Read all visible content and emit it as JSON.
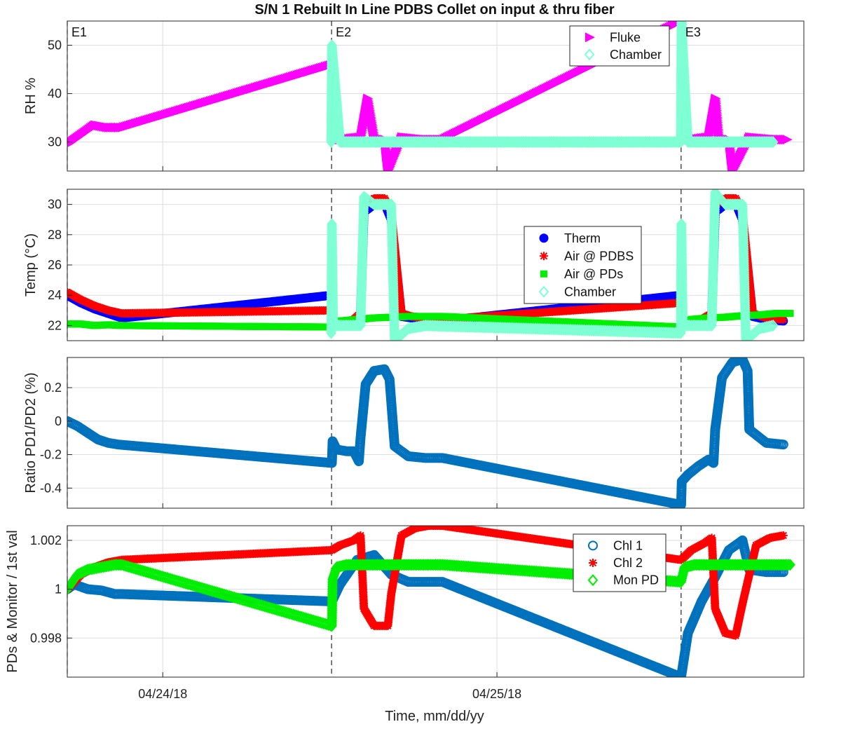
{
  "title": "S/N 1 Rebuilt In Line PDBS Collet on input & thru fiber",
  "xlabel": "Time, mm/dd/yy",
  "x_ticks": [
    "04/24/18",
    "04/25/18"
  ],
  "events": [
    {
      "label": "E1",
      "t": 0.0
    },
    {
      "label": "E2",
      "t": 0.775
    },
    {
      "label": "E3",
      "t": 1.8
    }
  ],
  "chart_data": [
    {
      "type": "scatter",
      "ylabel": "RH %",
      "ylim": [
        24,
        55
      ],
      "yticks": [
        30,
        40,
        50
      ],
      "legend_position": "top-right",
      "series": [
        {
          "name": "Fluke",
          "color": "#ff00ff",
          "marker": "triangle-right",
          "x": [
            0.0,
            0.04,
            0.08,
            0.12,
            0.16,
            0.776,
            0.778,
            0.8,
            0.86,
            0.88,
            0.9,
            0.93,
            0.94,
            0.98,
            1.05,
            1.1,
            1.801,
            1.805,
            1.83,
            1.88,
            1.9,
            1.91,
            1.94,
            1.95,
            2.0,
            2.08,
            2.11
          ],
          "y": [
            29.5,
            31.5,
            33.5,
            33.0,
            33.0,
            46,
            30.5,
            30.5,
            31,
            39,
            30.5,
            30.5,
            24,
            31,
            30.5,
            30.5,
            55,
            30.5,
            30.5,
            31,
            39,
            30.5,
            30.5,
            24,
            31,
            30.5,
            30.5
          ]
        },
        {
          "name": "Chamber",
          "color": "#7fffd4",
          "marker": "diamond",
          "x": [
            0.774,
            0.776,
            0.8,
            0.85,
            0.9,
            0.95,
            1.0,
            1.05,
            1.799,
            1.801,
            1.82,
            1.87,
            1.92,
            1.97,
            2.02,
            2.07
          ],
          "y": [
            30,
            50,
            30,
            30,
            30,
            30,
            30,
            30,
            30,
            55,
            30,
            30,
            30,
            30,
            30,
            30
          ]
        }
      ]
    },
    {
      "type": "scatter",
      "ylabel": "Temp (°C)",
      "ylim": [
        21,
        31
      ],
      "yticks": [
        22,
        24,
        26,
        28,
        30
      ],
      "legend_position": "center-right",
      "series": [
        {
          "name": "Therm",
          "color": "#0000ff",
          "marker": "circle",
          "x": [
            0.0,
            0.04,
            0.08,
            0.12,
            0.16,
            0.776,
            0.78,
            0.81,
            0.84,
            0.86,
            0.87,
            0.9,
            0.93,
            0.95,
            0.98,
            1.01,
            1.05,
            1.1,
            1.801,
            1.805,
            1.83,
            1.86,
            1.89,
            1.9,
            1.93,
            1.96,
            1.98,
            2.01,
            2.05,
            2.1
          ],
          "y": [
            24.0,
            23.5,
            23.1,
            22.8,
            22.5,
            24.0,
            22.1,
            22.0,
            22.1,
            22.6,
            29.5,
            30.0,
            30.1,
            29.0,
            22.6,
            22.5,
            22.4,
            22.3,
            24.0,
            22.1,
            22.0,
            22.1,
            22.6,
            29.5,
            30.0,
            30.1,
            29.0,
            22.6,
            22.4,
            22.3
          ]
        },
        {
          "name": "Air @ PDBS",
          "color": "#ff0000",
          "marker": "asterisk",
          "x": [
            0.0,
            0.04,
            0.08,
            0.12,
            0.16,
            0.776,
            0.78,
            0.81,
            0.84,
            0.86,
            0.87,
            0.9,
            0.93,
            0.95,
            0.98,
            1.01,
            1.05,
            1.1,
            1.801,
            1.805,
            1.83,
            1.86,
            1.89,
            1.9,
            1.93,
            1.96,
            1.98,
            2.01,
            2.05,
            2.1
          ],
          "y": [
            24.2,
            23.7,
            23.3,
            23.0,
            22.8,
            23.0,
            22.3,
            22.2,
            22.4,
            22.8,
            30.0,
            30.4,
            30.4,
            29.5,
            22.8,
            22.6,
            22.5,
            22.4,
            23.5,
            22.3,
            22.2,
            22.4,
            22.8,
            30.0,
            30.4,
            30.4,
            29.5,
            22.8,
            22.5,
            22.4
          ]
        },
        {
          "name": "Air @ PDs",
          "color": "#00ee00",
          "marker": "square",
          "x": [
            0.0,
            0.04,
            0.08,
            0.12,
            0.16,
            0.776,
            0.8,
            0.85,
            0.9,
            0.95,
            1.0,
            1.05,
            1.1,
            1.801,
            1.83,
            1.88,
            1.93,
            1.98,
            2.03,
            2.08,
            2.12
          ],
          "y": [
            22.1,
            22.1,
            22.0,
            22.05,
            22.0,
            21.9,
            22.3,
            22.4,
            22.5,
            22.55,
            22.6,
            22.6,
            22.6,
            21.9,
            22.4,
            22.5,
            22.55,
            22.65,
            22.7,
            22.8,
            22.8
          ]
        },
        {
          "name": "Chamber",
          "color": "#7fffd4",
          "marker": "diamond",
          "x": [
            0.774,
            0.776,
            0.78,
            0.8,
            0.83,
            0.86,
            0.87,
            0.9,
            0.93,
            0.95,
            0.96,
            1.0,
            1.05,
            1.799,
            1.801,
            1.805,
            1.83,
            1.86,
            1.89,
            1.9,
            1.93,
            1.96,
            1.98,
            1.99,
            2.03,
            2.07
          ],
          "y": [
            21.5,
            28.7,
            22.0,
            22.0,
            22.0,
            22.0,
            30.5,
            30.0,
            30.0,
            30.0,
            21.0,
            21.8,
            22.0,
            21.5,
            28.7,
            22.0,
            22.0,
            22.0,
            22.0,
            30.8,
            30.0,
            30.0,
            30.0,
            21.0,
            21.8,
            22.0
          ]
        }
      ]
    },
    {
      "type": "scatter",
      "ylabel": "Ratio PD1/PD2 (%)",
      "ylim": [
        -0.52,
        0.38
      ],
      "yticks": [
        -0.4,
        -0.2,
        0,
        0.2
      ],
      "series": [
        {
          "name": "",
          "color": "#0072bd",
          "marker": "circle",
          "x": [
            0.0,
            0.03,
            0.06,
            0.09,
            0.12,
            0.15,
            0.776,
            0.778,
            0.79,
            0.82,
            0.84,
            0.855,
            0.86,
            0.875,
            0.9,
            0.93,
            0.945,
            0.96,
            1.0,
            1.05,
            1.1,
            1.8,
            1.802,
            1.82,
            1.85,
            1.88,
            1.895,
            1.9,
            1.92,
            1.95,
            1.98,
            1.995,
            2.0,
            2.05,
            2.1
          ],
          "y": [
            0.0,
            -0.03,
            -0.07,
            -0.11,
            -0.13,
            -0.14,
            -0.25,
            -0.12,
            -0.17,
            -0.18,
            -0.18,
            -0.24,
            -0.1,
            0.22,
            0.3,
            0.31,
            0.25,
            -0.15,
            -0.21,
            -0.22,
            -0.22,
            -0.5,
            -0.36,
            -0.32,
            -0.27,
            -0.23,
            -0.25,
            -0.05,
            0.26,
            0.35,
            0.37,
            0.3,
            -0.05,
            -0.13,
            -0.14
          ]
        }
      ]
    },
    {
      "type": "scatter",
      "ylabel": "PDs & Monitor / 1st val",
      "ylim": [
        0.9964,
        1.0026
      ],
      "yticks": [
        0.998,
        1,
        1.002
      ],
      "legend_position": "top-right",
      "series": [
        {
          "name": "Chl 1",
          "color": "#0072bd",
          "marker": "circle",
          "x": [
            0.0,
            0.02,
            0.06,
            0.1,
            0.14,
            0.16,
            0.776,
            0.8,
            0.85,
            0.9,
            0.95,
            1.0,
            1.05,
            1.1,
            1.8,
            1.82,
            1.86,
            1.9,
            1.94,
            1.98,
            2.0,
            2.05,
            2.1
          ],
          "y": [
            1.0,
            1.0002,
            1.0,
            0.99995,
            0.9998,
            0.9998,
            0.9995,
            1.0002,
            1.0012,
            1.0014,
            1.0006,
            1.0003,
            1.0003,
            1.0003,
            0.9964,
            0.9982,
            0.9995,
            1.0005,
            1.0016,
            1.002,
            1.0008,
            1.0007,
            1.0007
          ]
        },
        {
          "name": "Chl 2",
          "color": "#ff0000",
          "marker": "asterisk",
          "x": [
            0.0,
            0.04,
            0.08,
            0.12,
            0.16,
            0.776,
            0.8,
            0.84,
            0.86,
            0.87,
            0.9,
            0.94,
            0.95,
            0.98,
            1.02,
            1.06,
            1.1,
            1.8,
            1.83,
            1.87,
            1.89,
            1.9,
            1.93,
            1.96,
            1.98,
            2.02,
            2.06,
            2.1
          ],
          "y": [
            1.0,
            1.0006,
            1.0009,
            1.0011,
            1.0012,
            1.0016,
            1.0018,
            1.002,
            1.0022,
            0.9992,
            0.9985,
            0.9985,
            0.9998,
            1.0022,
            1.0025,
            1.0026,
            1.0026,
            1.0012,
            1.0016,
            1.0019,
            1.0021,
            0.9992,
            0.9982,
            0.9981,
            0.9994,
            1.0018,
            1.0021,
            1.0022
          ]
        },
        {
          "name": "Mon PD",
          "color": "#00ee00",
          "marker": "diamond",
          "x": [
            0.0,
            0.03,
            0.06,
            0.1,
            0.14,
            0.16,
            0.776,
            0.778,
            0.79,
            0.82,
            0.86,
            0.9,
            0.95,
            1.0,
            1.05,
            1.1,
            1.8,
            1.81,
            1.84,
            1.88,
            1.93,
            1.98,
            2.03,
            2.08,
            2.12
          ],
          "y": [
            1.0,
            1.0006,
            1.0008,
            1.0009,
            1.001,
            1.001,
            0.9985,
            1.0004,
            1.0009,
            1.001,
            1.001,
            1.001,
            1.001,
            1.001,
            1.001,
            1.001,
            1.0003,
            1.0009,
            1.001,
            1.001,
            1.001,
            1.001,
            1.001,
            1.001,
            1.001
          ]
        }
      ]
    }
  ]
}
